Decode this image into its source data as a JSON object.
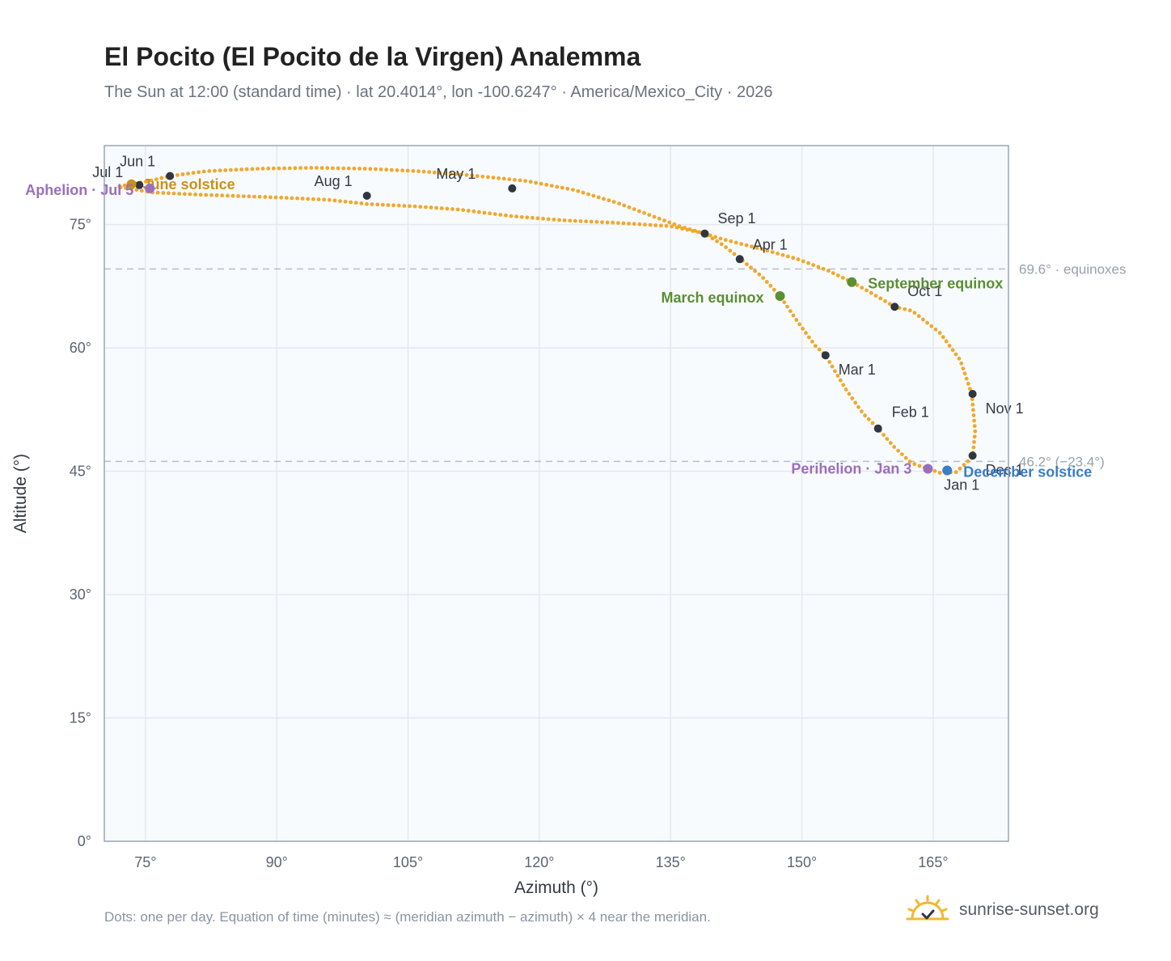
{
  "header": {
    "title": "El Pocito (El Pocito de la Virgen) Analemma",
    "subtitle": "The Sun at 12:00 (standard time) · lat 20.4014°, lon -100.6247° · America/Mexico_City · 2026"
  },
  "footer": {
    "note": "Dots: one per day. Equation of time (minutes) ≈ (meridian azimuth − azimuth) × 4 near the meridian.",
    "brand": "sunrise-sunset.org",
    "brand_icon": "sun-check-icon"
  },
  "colors": {
    "curve": "#f2a72b",
    "month_marker": "#2f3542",
    "equinox": "#5b8f33",
    "june_solstice": "#c8911b",
    "december_solstice": "#3c7dc4",
    "aphelion_perihelion": "#9a6fbc",
    "plot_bg": "#f8fbfd",
    "grid": "#e4e9ef",
    "reference_line": "#b6bec8"
  },
  "chart_data": {
    "type": "scatter",
    "xlabel": "Azimuth (°)",
    "ylabel": "Altitude (°)",
    "xlim": [
      70.3,
      173.6
    ],
    "ylim": [
      0,
      84.6
    ],
    "x_ticks": [
      {
        "value": 75,
        "label": "75°"
      },
      {
        "value": 90,
        "label": "90°"
      },
      {
        "value": 105,
        "label": "105°"
      },
      {
        "value": 120,
        "label": "120°"
      },
      {
        "value": 135,
        "label": "135°"
      },
      {
        "value": 150,
        "label": "150°"
      },
      {
        "value": 165,
        "label": "165°"
      }
    ],
    "y_ticks": [
      {
        "value": 0,
        "label": "0°"
      },
      {
        "value": 15,
        "label": "15°"
      },
      {
        "value": 30,
        "label": "30°"
      },
      {
        "value": 45,
        "label": "45°"
      },
      {
        "value": 60,
        "label": "60°"
      },
      {
        "value": 75,
        "label": "75°"
      }
    ],
    "grid": true,
    "reference_lines": [
      {
        "y": 69.6,
        "label": "69.6° · equinoxes"
      },
      {
        "y": 46.2,
        "label": "46.2° (−23.4°)"
      }
    ],
    "series": [
      {
        "marker": "dot",
        "points": [
          [
            167.6,
            44.9
          ],
          [
            169.5,
            46.7
          ],
          [
            169.8,
            49.8
          ],
          [
            169.4,
            54.4
          ],
          [
            168.1,
            58.5
          ],
          [
            165.8,
            61.8
          ],
          [
            162.6,
            64.5
          ],
          [
            160.6,
            65.0
          ],
          [
            157.4,
            67.0
          ],
          [
            155.7,
            68.0
          ],
          [
            153.0,
            69.4
          ],
          [
            149.5,
            70.8
          ],
          [
            145.5,
            72.0
          ],
          [
            141.0,
            73.2
          ],
          [
            138.9,
            73.9
          ],
          [
            136.0,
            74.8
          ],
          [
            133.0,
            76.0
          ],
          [
            129.0,
            77.6
          ],
          [
            124.0,
            79.2
          ],
          [
            118.5,
            80.3
          ],
          [
            112.0,
            81.0
          ],
          [
            106.0,
            81.5
          ],
          [
            100.0,
            81.8
          ],
          [
            94.0,
            81.9
          ],
          [
            88.0,
            81.8
          ],
          [
            82.0,
            81.5
          ],
          [
            77.8,
            80.9
          ],
          [
            75.0,
            80.2
          ],
          [
            71.8,
            79.6
          ],
          [
            75.8,
            78.9
          ],
          [
            82.0,
            78.6
          ],
          [
            90.0,
            78.3
          ],
          [
            96.0,
            78.0
          ],
          [
            100.3,
            77.5
          ],
          [
            106.0,
            77.2
          ],
          [
            111.0,
            76.8
          ],
          [
            117.0,
            76.0
          ],
          [
            123.0,
            75.5
          ],
          [
            129.0,
            75.2
          ],
          [
            135.0,
            74.8
          ],
          [
            138.9,
            73.9
          ],
          [
            141.0,
            72.5
          ],
          [
            143.0,
            70.8
          ],
          [
            145.5,
            68.6
          ],
          [
            147.5,
            66.3
          ],
          [
            149.5,
            63.2
          ],
          [
            151.5,
            60.3
          ],
          [
            152.7,
            59.1
          ],
          [
            155.0,
            55.0
          ],
          [
            157.0,
            52.0
          ],
          [
            158.7,
            50.2
          ],
          [
            160.5,
            48.0
          ],
          [
            162.5,
            46.0
          ],
          [
            164.4,
            45.3
          ],
          [
            165.8,
            44.8
          ],
          [
            167.6,
            44.9
          ]
        ]
      }
    ],
    "month_markers": [
      {
        "label": "Jan 1",
        "azimuth": 166.6,
        "altitude": 45.1
      },
      {
        "label": "Feb 1",
        "azimuth": 158.7,
        "altitude": 50.2
      },
      {
        "label": "Mar 1",
        "azimuth": 152.7,
        "altitude": 59.1
      },
      {
        "label": "Apr 1",
        "azimuth": 142.9,
        "altitude": 70.8
      },
      {
        "label": "May 1",
        "azimuth": 116.9,
        "altitude": 79.4
      },
      {
        "label": "Jun 1",
        "azimuth": 77.8,
        "altitude": 80.9
      },
      {
        "label": "Jul 1",
        "azimuth": 74.3,
        "altitude": 79.8
      },
      {
        "label": "Aug 1",
        "azimuth": 100.3,
        "altitude": 78.5
      },
      {
        "label": "Sep 1",
        "azimuth": 138.9,
        "altitude": 73.9
      },
      {
        "label": "Oct 1",
        "azimuth": 160.6,
        "altitude": 65.0
      },
      {
        "label": "Nov 1",
        "azimuth": 169.5,
        "altitude": 54.4
      },
      {
        "label": "Dec 1",
        "azimuth": 169.5,
        "altitude": 46.9
      }
    ],
    "events": [
      {
        "label": "March equinox",
        "azimuth": 147.5,
        "altitude": 66.3,
        "color": "#5b8f33"
      },
      {
        "label": "September equinox",
        "azimuth": 155.7,
        "altitude": 68.0,
        "color": "#5b8f33"
      },
      {
        "label": "June solstice",
        "azimuth": 73.4,
        "altitude": 79.9,
        "color": "#c8911b"
      },
      {
        "label": "December solstice",
        "azimuth": 166.6,
        "altitude": 45.1,
        "color": "#3c7dc4"
      },
      {
        "label": "Aphelion · Jul 5",
        "azimuth": 75.5,
        "altitude": 79.4,
        "color": "#9a6fbc"
      },
      {
        "label": "Perihelion · Jan 3",
        "azimuth": 164.4,
        "altitude": 45.3,
        "color": "#9a6fbc"
      }
    ]
  }
}
